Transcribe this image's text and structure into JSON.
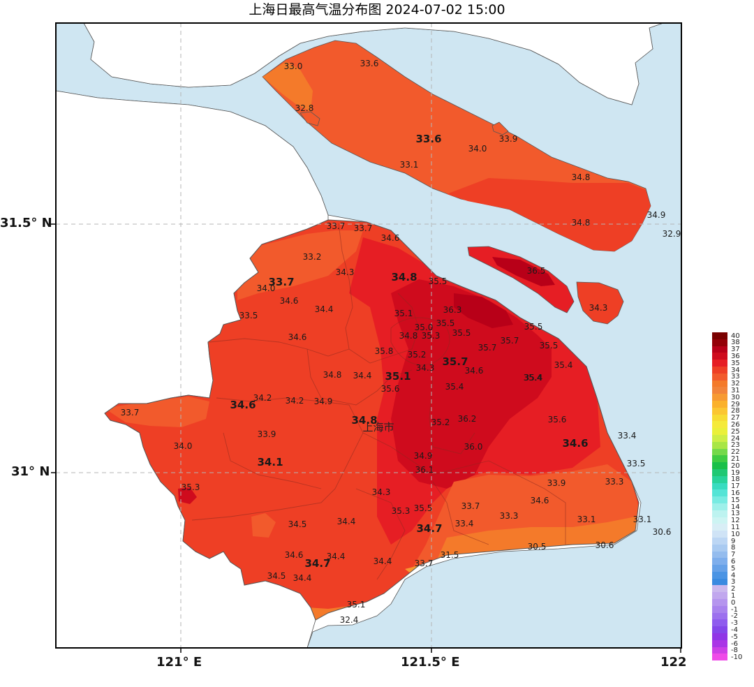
{
  "title": "上海日最高气温分布图 2024-07-02 15:00",
  "axes": {
    "x_ticks": [
      "121° E",
      "121.5° E",
      "122"
    ],
    "y_ticks": [
      "31.5° N",
      "31° N"
    ]
  },
  "city_label": "上海市",
  "colors": {
    "water": "#cfe6f2",
    "land_outside": "#ffffff",
    "boundary": "#8a2a1f",
    "grid": "#c9c9c9",
    "t30": "#f79a32",
    "t31": "#f2843a",
    "t32": "#f47a2a",
    "t33": "#f25a2c",
    "t34": "#ee3f25",
    "t35": "#e61e24",
    "t36": "#cf0b1d",
    "t37": "#b80018"
  },
  "stations": [
    {
      "v": "33.0"
    },
    {
      "v": "33.6"
    },
    {
      "v": "32.8"
    },
    {
      "v": "33.6",
      "big": true
    },
    {
      "v": "34.0"
    },
    {
      "v": "33.9"
    },
    {
      "v": "33.1"
    },
    {
      "v": "34.8"
    },
    {
      "v": "34.9"
    },
    {
      "v": "34.8"
    },
    {
      "v": "32.9"
    },
    {
      "v": "33.7"
    },
    {
      "v": "33.7"
    },
    {
      "v": "34.6"
    },
    {
      "v": "33.2"
    },
    {
      "v": "34.3"
    },
    {
      "v": "34.8",
      "big": true
    },
    {
      "v": "35.5"
    },
    {
      "v": "36.5"
    },
    {
      "v": "33.7",
      "big": true
    },
    {
      "v": "34.0"
    },
    {
      "v": "34.6"
    },
    {
      "v": "34.4"
    },
    {
      "v": "34.3"
    },
    {
      "v": "35.1"
    },
    {
      "v": "36.3"
    },
    {
      "v": "33.5"
    },
    {
      "v": "35.0"
    },
    {
      "v": "35.5"
    },
    {
      "v": "35.5"
    },
    {
      "v": "34.8"
    },
    {
      "v": "35.3"
    },
    {
      "v": "35.5"
    },
    {
      "v": "34.6"
    },
    {
      "v": "35.7"
    },
    {
      "v": "35.7"
    },
    {
      "v": "35.5"
    },
    {
      "v": "35.8"
    },
    {
      "v": "35.2"
    },
    {
      "v": "35.7",
      "big": true
    },
    {
      "v": "34.3"
    },
    {
      "v": "34.6"
    },
    {
      "v": "35.4"
    },
    {
      "v": "34.8"
    },
    {
      "v": "34.4"
    },
    {
      "v": "35.1",
      "big": true
    },
    {
      "v": "35.4"
    },
    {
      "v": "35.6"
    },
    {
      "v": "35.4"
    },
    {
      "v": "34.2"
    },
    {
      "v": "34.6",
      "big": true
    },
    {
      "v": "34.2"
    },
    {
      "v": "34.9"
    },
    {
      "v": "33.7"
    },
    {
      "v": "34.8",
      "big": true
    },
    {
      "v": "35.2"
    },
    {
      "v": "36.2"
    },
    {
      "v": "35.6"
    },
    {
      "v": "33.9"
    },
    {
      "v": "34.0"
    },
    {
      "v": "34.6",
      "big": true
    },
    {
      "v": "36.0"
    },
    {
      "v": "33.4"
    },
    {
      "v": "34.1",
      "big": true
    },
    {
      "v": "34.9"
    },
    {
      "v": "33.5"
    },
    {
      "v": "36.1"
    },
    {
      "v": "35.3"
    },
    {
      "v": "33.9"
    },
    {
      "v": "33.3"
    },
    {
      "v": "34.3"
    },
    {
      "v": "34.6"
    },
    {
      "v": "33.7"
    },
    {
      "v": "35.3"
    },
    {
      "v": "35.5"
    },
    {
      "v": "33.3"
    },
    {
      "v": "33.1"
    },
    {
      "v": "33.1"
    },
    {
      "v": "34.5"
    },
    {
      "v": "34.4"
    },
    {
      "v": "33.4"
    },
    {
      "v": "34.7",
      "big": true
    },
    {
      "v": "30.6"
    },
    {
      "v": "35.4"
    },
    {
      "v": "30.5"
    },
    {
      "v": "30.6"
    },
    {
      "v": "34.6"
    },
    {
      "v": "34.4"
    },
    {
      "v": "31.5"
    },
    {
      "v": "34.7",
      "big": true
    },
    {
      "v": "34.4"
    },
    {
      "v": "33.7"
    },
    {
      "v": "34.5"
    },
    {
      "v": "34.4"
    },
    {
      "v": "35.1"
    },
    {
      "v": "32.4"
    }
  ],
  "legend": [
    {
      "label": "40",
      "color": "#7a0000"
    },
    {
      "label": "38",
      "color": "#940008"
    },
    {
      "label": "37",
      "color": "#b80018"
    },
    {
      "label": "36",
      "color": "#cf0b1d"
    },
    {
      "label": "35",
      "color": "#e61e24"
    },
    {
      "label": "34",
      "color": "#ee3f25"
    },
    {
      "label": "33",
      "color": "#f25a2c"
    },
    {
      "label": "32",
      "color": "#f47a2a"
    },
    {
      "label": "31",
      "color": "#f2843a"
    },
    {
      "label": "30",
      "color": "#f79a32"
    },
    {
      "label": "29",
      "color": "#fbb12b"
    },
    {
      "label": "28",
      "color": "#fbc631"
    },
    {
      "label": "27",
      "color": "#f7dc33"
    },
    {
      "label": "26",
      "color": "#f5ea3a"
    },
    {
      "label": "25",
      "color": "#eaf03a"
    },
    {
      "label": "24",
      "color": "#cdee46"
    },
    {
      "label": "23",
      "color": "#a8e645"
    },
    {
      "label": "22",
      "color": "#74d94a"
    },
    {
      "label": "21",
      "color": "#3fcc43"
    },
    {
      "label": "20",
      "color": "#19c049"
    },
    {
      "label": "19",
      "color": "#20c874"
    },
    {
      "label": "18",
      "color": "#28d39b"
    },
    {
      "label": "17",
      "color": "#38dcc0"
    },
    {
      "label": "16",
      "color": "#54e4d6"
    },
    {
      "label": "15",
      "color": "#78ebe2"
    },
    {
      "label": "14",
      "color": "#9ef0ea"
    },
    {
      "label": "13",
      "color": "#bdf3f0"
    },
    {
      "label": "12",
      "color": "#cdf4f3"
    },
    {
      "label": "11",
      "color": "#d8eef6"
    },
    {
      "label": "10",
      "color": "#cfe3f6"
    },
    {
      "label": "9",
      "color": "#bcd6f4"
    },
    {
      "label": "8",
      "color": "#a9caf1"
    },
    {
      "label": "7",
      "color": "#94bcee"
    },
    {
      "label": "6",
      "color": "#7eaeec"
    },
    {
      "label": "5",
      "color": "#66a1e8"
    },
    {
      "label": "4",
      "color": "#4b94e4"
    },
    {
      "label": "3",
      "color": "#3a8ae0"
    },
    {
      "label": "2",
      "color": "#cbb8ee"
    },
    {
      "label": "1",
      "color": "#c1a7ee"
    },
    {
      "label": "0",
      "color": "#b595ee"
    },
    {
      "label": "-1",
      "color": "#a983ee"
    },
    {
      "label": "-2",
      "color": "#9c70ee"
    },
    {
      "label": "-3",
      "color": "#8f5cee"
    },
    {
      "label": "-4",
      "color": "#8447ea"
    },
    {
      "label": "-5",
      "color": "#9036e6"
    },
    {
      "label": "-6",
      "color": "#aa36e6"
    },
    {
      "label": "-8",
      "color": "#cc40e6"
    },
    {
      "label": "-10",
      "color": "#ef4be8"
    }
  ]
}
